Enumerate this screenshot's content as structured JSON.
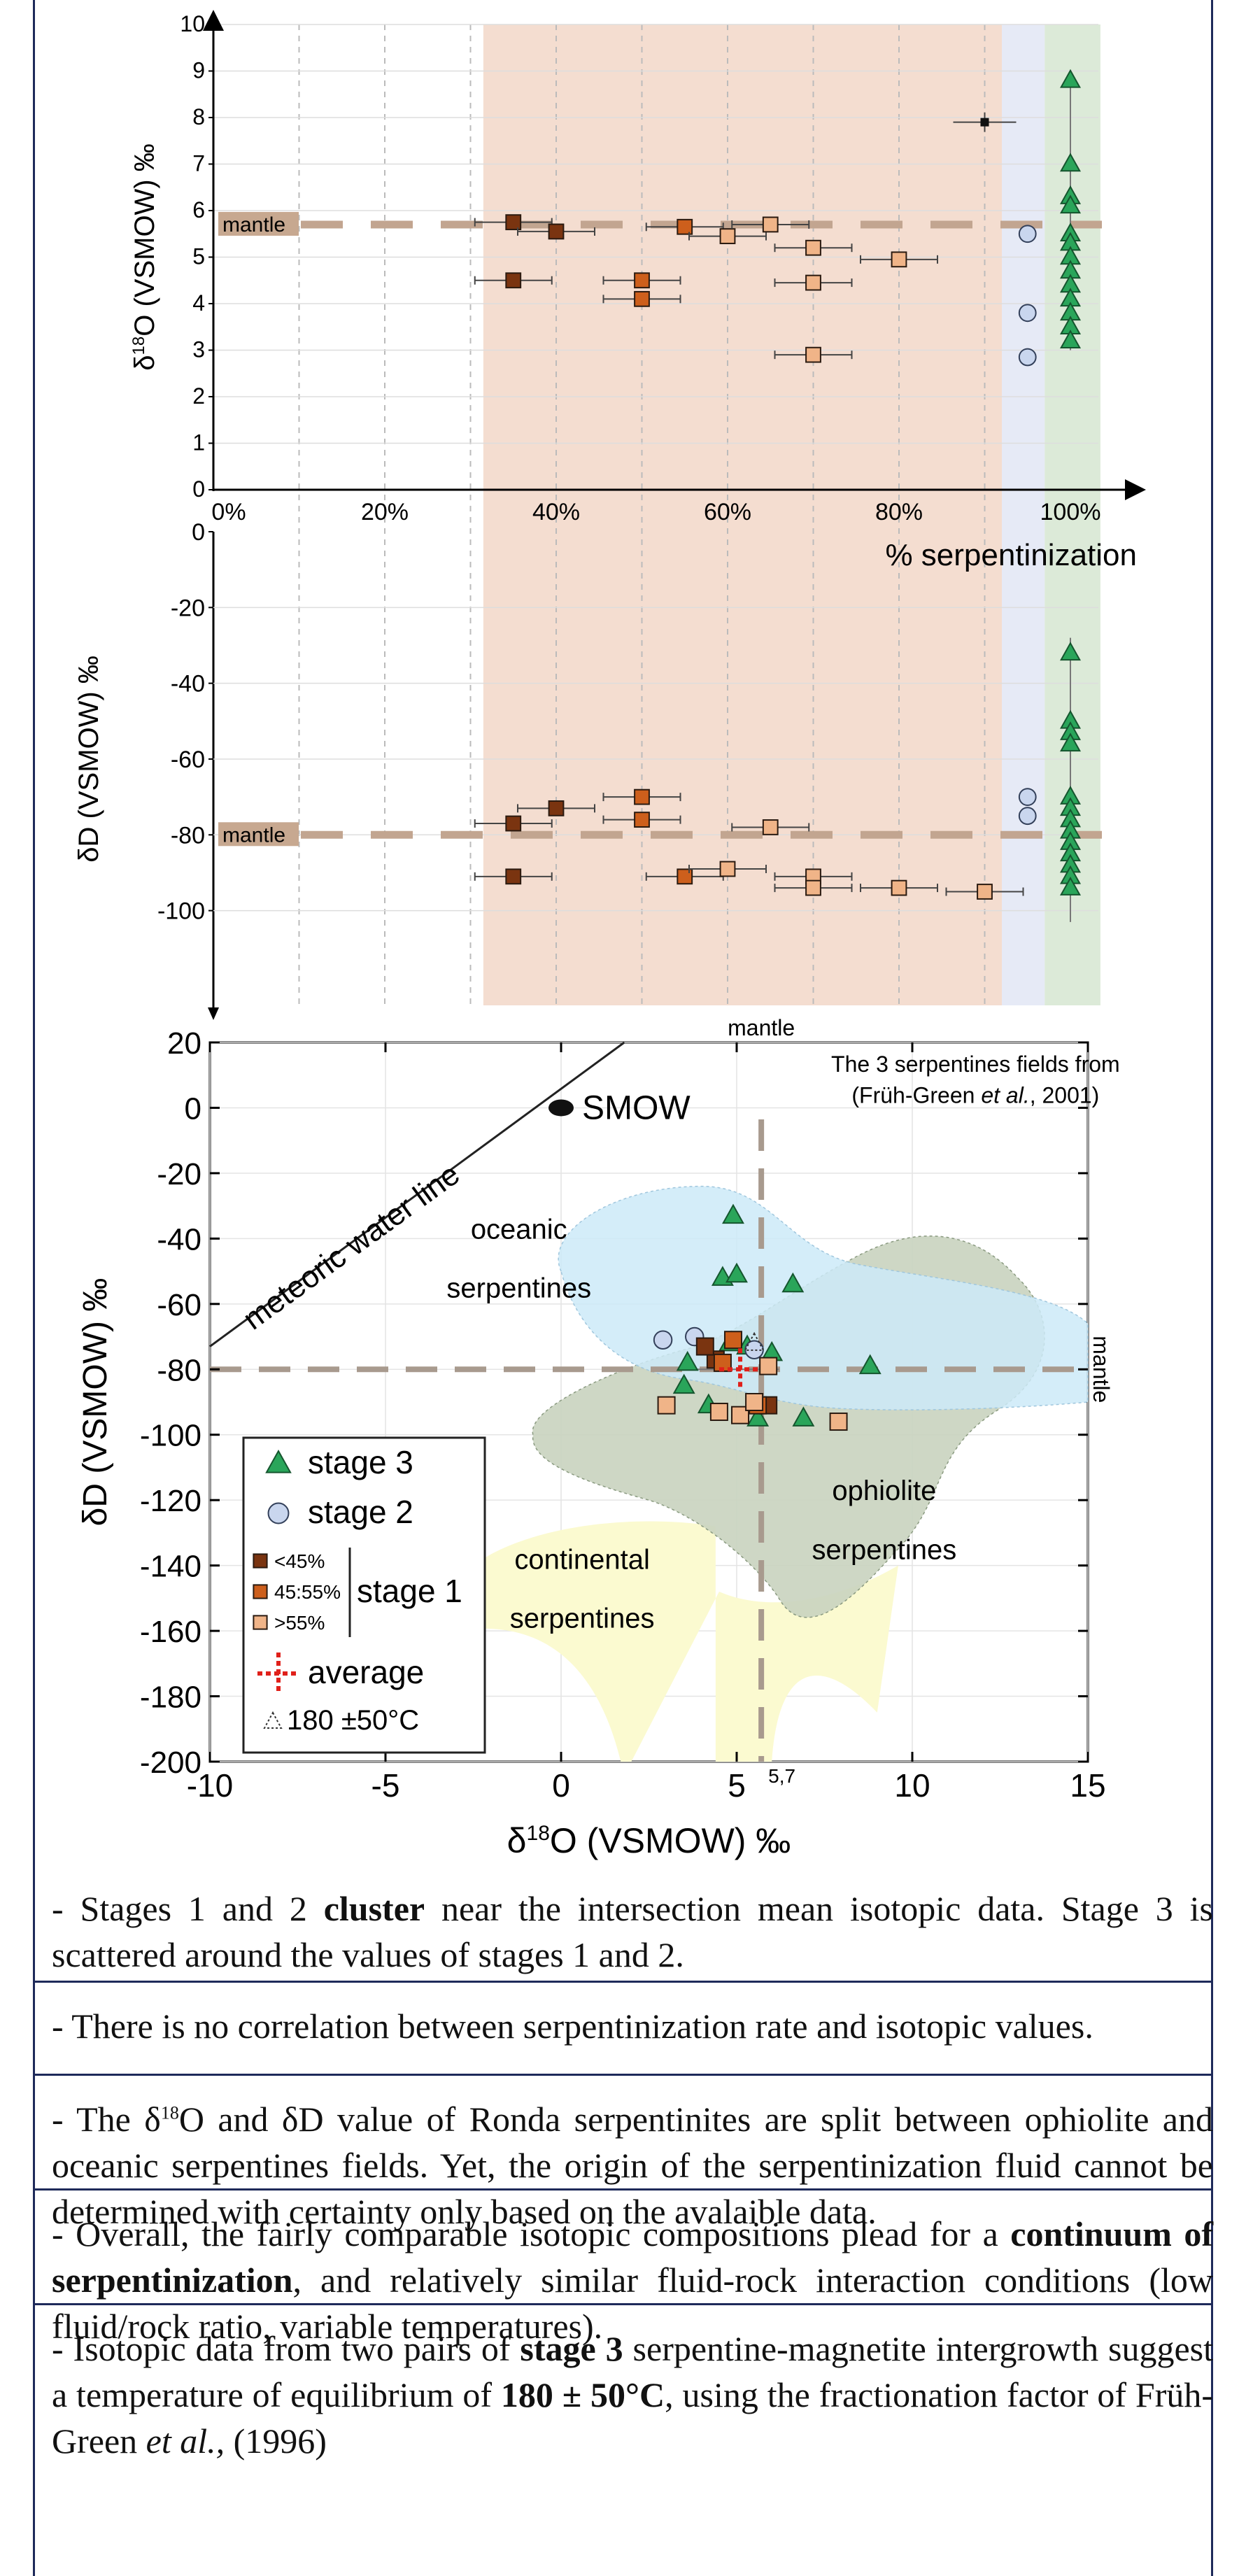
{
  "panel_top": {
    "ylabel": "δ18O (VSMOW) ‰",
    "xlabel": "% serpentinization",
    "mantle_label": "mantle",
    "y_ticks": [
      "0",
      "1",
      "2",
      "3",
      "4",
      "5",
      "6",
      "7",
      "8",
      "9",
      "10"
    ],
    "x_ticks": [
      "0%",
      "20%",
      "40%",
      "60%",
      "80%",
      "100%"
    ]
  },
  "panel_mid": {
    "ylabel": "δD (VSMOW) ‰",
    "mantle_label": "mantle",
    "y_ticks": [
      "0",
      "-20",
      "-40",
      "-60",
      "-80",
      "-100"
    ]
  },
  "panel_bottom": {
    "mantle_top": "mantle",
    "mantle_right": "mantle",
    "ylabel": "δD (VSMOW) ‰",
    "xlabel": "δ18O (VSMOW) ‰",
    "x_ticks": [
      "-10",
      "-5",
      "0",
      "5",
      "10",
      "15"
    ],
    "x_extra_tick": "5,7",
    "y_ticks": [
      "20",
      "0",
      "-20",
      "-40",
      "-60",
      "-80",
      "-100",
      "-120",
      "-140",
      "-160",
      "-180",
      "-200"
    ],
    "meteoric_label": "meteoric water line",
    "smow_label": "SMOW",
    "source_line1": "The 3 serpentines fields from",
    "source_line2": "(Früh-Green et al., 2001)",
    "field_oceanic": [
      "oceanic",
      "serpentines"
    ],
    "field_ophiolite": [
      "ophiolite",
      "serpentines"
    ],
    "field_continental": [
      "continental",
      "serpentines"
    ],
    "legend": {
      "stage3": "stage 3",
      "stage2": "stage 2",
      "stage1": "stage 1",
      "lt45": "<45%",
      "mid": "45:55%",
      "gt55": ">55%",
      "average": "average",
      "temp": "180 ±50°C"
    }
  },
  "chart_data": [
    {
      "type": "scatter",
      "xlabel": "% serpentinization",
      "ylabel": "δ18O (VSMOW) ‰",
      "xlim": [
        0,
        110
      ],
      "ylim": [
        0,
        10
      ],
      "mantle_value": 5.7,
      "series": [
        {
          "name": "<45%",
          "points": [
            [
              35,
              5.75
            ],
            [
              35,
              4.5
            ],
            [
              40,
              5.55
            ]
          ]
        },
        {
          "name": "45:55%",
          "points": [
            [
              50,
              4.5
            ],
            [
              50,
              4.1
            ],
            [
              55,
              5.65
            ]
          ]
        },
        {
          "name": ">55%",
          "points": [
            [
              60,
              5.45
            ],
            [
              65,
              5.7
            ],
            [
              70,
              5.2
            ],
            [
              70,
              4.45
            ],
            [
              70,
              2.9
            ],
            [
              80,
              4.95
            ]
          ]
        },
        {
          "name": "stage 2",
          "points": [
            [
              95,
              5.5
            ],
            [
              95,
              3.8
            ],
            [
              95,
              2.85
            ]
          ]
        },
        {
          "name": "stage 3",
          "points": [
            [
              100,
              8.8
            ],
            [
              100,
              7.0
            ],
            [
              100,
              6.3
            ],
            [
              100,
              6.1
            ],
            [
              100,
              5.5
            ],
            [
              100,
              5.3
            ],
            [
              100,
              5.0
            ],
            [
              100,
              4.7
            ],
            [
              100,
              4.4
            ],
            [
              100,
              4.1
            ],
            [
              100,
              3.8
            ],
            [
              100,
              3.5
            ],
            [
              100,
              3.2
            ]
          ]
        },
        {
          "name": "average",
          "points": [
            [
              90,
              7.9
            ]
          ]
        }
      ]
    },
    {
      "type": "scatter",
      "xlabel": "% serpentinization",
      "ylabel": "δD (VSMOW) ‰",
      "xlim": [
        0,
        110
      ],
      "ylim": [
        -125,
        0
      ],
      "mantle_value": -80,
      "series": [
        {
          "name": "<45%",
          "points": [
            [
              35,
              -77
            ],
            [
              35,
              -91
            ],
            [
              40,
              -73
            ]
          ]
        },
        {
          "name": "45:55%",
          "points": [
            [
              50,
              -70
            ],
            [
              50,
              -76
            ],
            [
              55,
              -91
            ]
          ]
        },
        {
          "name": ">55%",
          "points": [
            [
              60,
              -89
            ],
            [
              65,
              -78
            ],
            [
              70,
              -91
            ],
            [
              70,
              -94
            ],
            [
              80,
              -94
            ],
            [
              90,
              -95
            ]
          ]
        },
        {
          "name": "stage 2",
          "points": [
            [
              95,
              -70
            ],
            [
              95,
              -75
            ]
          ]
        },
        {
          "name": "stage 3",
          "points": [
            [
              100,
              -32
            ],
            [
              100,
              -50
            ],
            [
              100,
              -53
            ],
            [
              100,
              -56
            ],
            [
              100,
              -70
            ],
            [
              100,
              -73
            ],
            [
              100,
              -76
            ],
            [
              100,
              -79
            ],
            [
              100,
              -82
            ],
            [
              100,
              -85
            ],
            [
              100,
              -88
            ],
            [
              100,
              -91
            ],
            [
              100,
              -94
            ]
          ]
        }
      ]
    },
    {
      "type": "scatter",
      "xlabel": "δ18O (VSMOW) ‰",
      "ylabel": "δD (VSMOW) ‰",
      "xlim": [
        -10,
        15
      ],
      "ylim": [
        -200,
        20
      ],
      "mantle_x": 5.7,
      "mantle_y": -80,
      "series": [
        {
          "name": "stage 3",
          "points": [
            [
              4.9,
              -33
            ],
            [
              4.6,
              -52
            ],
            [
              5.0,
              -51
            ],
            [
              6.6,
              -54
            ],
            [
              8.8,
              -79
            ],
            [
              6.0,
              -75
            ],
            [
              3.6,
              -78
            ],
            [
              3.5,
              -85
            ],
            [
              4.2,
              -91
            ],
            [
              5.6,
              -95
            ],
            [
              6.9,
              -95
            ],
            [
              4.8,
              -72
            ],
            [
              5.3,
              -73
            ]
          ]
        },
        {
          "name": "stage 2",
          "points": [
            [
              2.9,
              -71
            ],
            [
              3.8,
              -70
            ],
            [
              5.5,
              -74
            ]
          ]
        },
        {
          "name": "<45%",
          "points": [
            [
              4.4,
              -77
            ],
            [
              5.9,
              -91
            ],
            [
              4.1,
              -73
            ]
          ]
        },
        {
          "name": "45:55%",
          "points": [
            [
              4.9,
              -71
            ],
            [
              4.6,
              -78
            ],
            [
              5.6,
              -91
            ]
          ]
        },
        {
          "name": ">55%",
          "points": [
            [
              3.0,
              -91
            ],
            [
              4.5,
              -93
            ],
            [
              5.1,
              -94
            ],
            [
              5.5,
              -90
            ],
            [
              5.9,
              -79
            ],
            [
              7.9,
              -96
            ]
          ]
        },
        {
          "name": "average",
          "points": [
            [
              5.1,
              -80
            ]
          ]
        }
      ]
    }
  ],
  "paragraphs": [
    {
      "runs": [
        {
          "t": "- Stages 1 and 2 "
        },
        {
          "t": "cluster",
          "b": true
        },
        {
          "t": " near the intersection mean isotopic data. Stage 3 is scattered around the values of stages 1 and 2."
        }
      ]
    },
    {
      "runs": [
        {
          "t": "- There is no correlation between serpentinization rate and isotopic values."
        }
      ]
    },
    {
      "runs": [
        {
          "t": "- The δ"
        },
        {
          "t": "18",
          "sup": true
        },
        {
          "t": "O and δD value of Ronda serpentinites are split between ophiolite and oceanic serpentines fields. Yet, the origin of the serpentinization fluid cannot be determined with certainty only based on the avalaible data."
        }
      ]
    },
    {
      "runs": [
        {
          "t": "- Overall, the fairly comparable isotopic compositions plead for a "
        },
        {
          "t": "continuum of serpentinization",
          "b": true
        },
        {
          "t": ", and relatively similar fluid-rock interaction conditions (low fluid/rock ratio, variable temperatures)."
        }
      ]
    },
    {
      "runs": [
        {
          "t": "- Isotopic data from two pairs of "
        },
        {
          "t": "stage 3",
          "b": true
        },
        {
          "t": " serpentine-magnetite intergrowth suggest a temperature of equilibrium of "
        },
        {
          "t": "180 ± 50°C",
          "b": true
        },
        {
          "t": ", using the fractionation factor of Früh-Green "
        },
        {
          "t": "et al.,",
          "i": true
        },
        {
          "t": " (1996)"
        }
      ]
    }
  ],
  "colors": {
    "stage3": "#2aa55a",
    "stage2": "#c9d6ee",
    "lt45": "#7a3410",
    "mid": "#cd5f1c",
    "gt55": "#f0b488",
    "average": "#e0201a",
    "band_orange": "#f4ddd0",
    "band_blue": "#e6eaf6",
    "band_green": "#dcead8",
    "oceanic": "#cdeaf8",
    "ophiolite": "#c9d3bf",
    "continental": "#fbfad0",
    "mantle_line": "#c2a590"
  }
}
